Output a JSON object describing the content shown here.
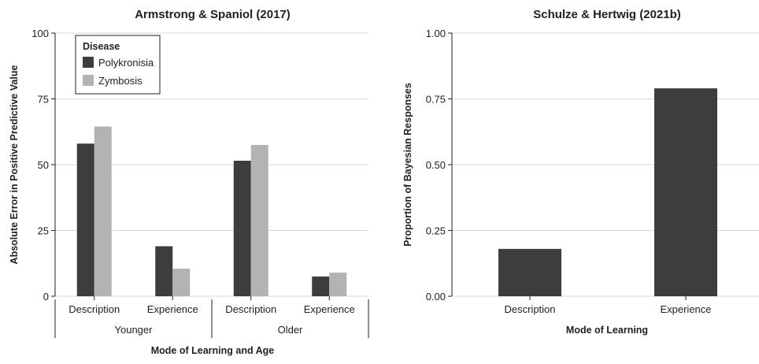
{
  "chart_data": [
    {
      "type": "bar",
      "title": "Armstrong & Spaniol (2017)",
      "xlabel": "Mode of Learning and Age",
      "ylabel": "Absolute Error in Positive Predictive Value",
      "ylim": [
        0,
        100
      ],
      "yticks": [
        "0",
        "25",
        "50",
        "75",
        "100"
      ],
      "groups": [
        {
          "name": "Younger",
          "categories": [
            "Description",
            "Experience"
          ]
        },
        {
          "name": "Older",
          "categories": [
            "Description",
            "Experience"
          ]
        }
      ],
      "categories": [
        "Description",
        "Experience",
        "Description",
        "Experience"
      ],
      "legend_title": "Disease",
      "legend_position": "top-left",
      "grid": "horizontal",
      "series": [
        {
          "name": "Polykronisia",
          "color": "#3d3d3d",
          "values": [
            58,
            19,
            51.5,
            7.5
          ]
        },
        {
          "name": "Zymbosis",
          "color": "#b3b3b3",
          "values": [
            64.5,
            10.5,
            57.5,
            9
          ]
        }
      ]
    },
    {
      "type": "bar",
      "title": "Schulze & Hertwig (2021b)",
      "xlabel": "Mode of Learning",
      "ylabel": "Proportion of Bayesian Responses",
      "ylim": [
        0,
        1
      ],
      "yticks": [
        "0.00",
        "0.25",
        "0.50",
        "0.75",
        "1.00"
      ],
      "grid": "horizontal",
      "categories": [
        "Description",
        "Experience"
      ],
      "series": [
        {
          "color": "#3d3d3d",
          "values": [
            0.18,
            0.79
          ]
        }
      ]
    }
  ]
}
